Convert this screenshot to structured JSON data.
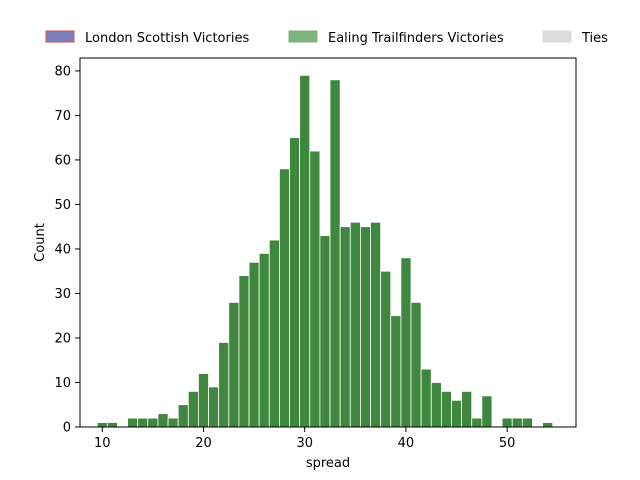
{
  "chart_data": {
    "type": "bar",
    "xlabel": "spread",
    "ylabel": "Count",
    "xlim": [
      7.8,
      56.8
    ],
    "ylim": [
      0,
      82.9
    ],
    "x_ticks": [
      10,
      20,
      30,
      40,
      50
    ],
    "y_ticks": [
      0,
      10,
      20,
      30,
      40,
      50,
      60,
      70,
      80
    ],
    "legend_placement": "top-center",
    "grid": false,
    "bin_width": 1,
    "legend": [
      {
        "label": "London Scottish Victories",
        "color": "#7f7fbf",
        "edge_color": "#d94b4b"
      },
      {
        "label": "Ealing Trailfinders Victories",
        "color": "#7db37d",
        "edge_color": "#7db37d"
      },
      {
        "label": "Ties",
        "color": "#dcdcdc",
        "edge_color": "#dcdcdc"
      }
    ],
    "series": [
      {
        "name": "Ealing Trailfinders Victories",
        "color": "#3f873f",
        "x": [
          10,
          11,
          13,
          14,
          15,
          16,
          17,
          18,
          19,
          20,
          21,
          22,
          23,
          24,
          25,
          26,
          27,
          28,
          29,
          30,
          31,
          32,
          33,
          34,
          35,
          36,
          37,
          38,
          39,
          40,
          41,
          42,
          43,
          44,
          45,
          46,
          47,
          48,
          50,
          51,
          52,
          54
        ],
        "values": [
          1,
          1,
          2,
          2,
          2,
          3,
          2,
          5,
          8,
          12,
          9,
          19,
          28,
          34,
          37,
          39,
          42,
          58,
          65,
          79,
          62,
          43,
          78,
          45,
          46,
          45,
          46,
          35,
          25,
          38,
          28,
          13,
          10,
          8,
          6,
          8,
          2,
          7,
          2,
          2,
          2,
          1
        ]
      }
    ]
  }
}
